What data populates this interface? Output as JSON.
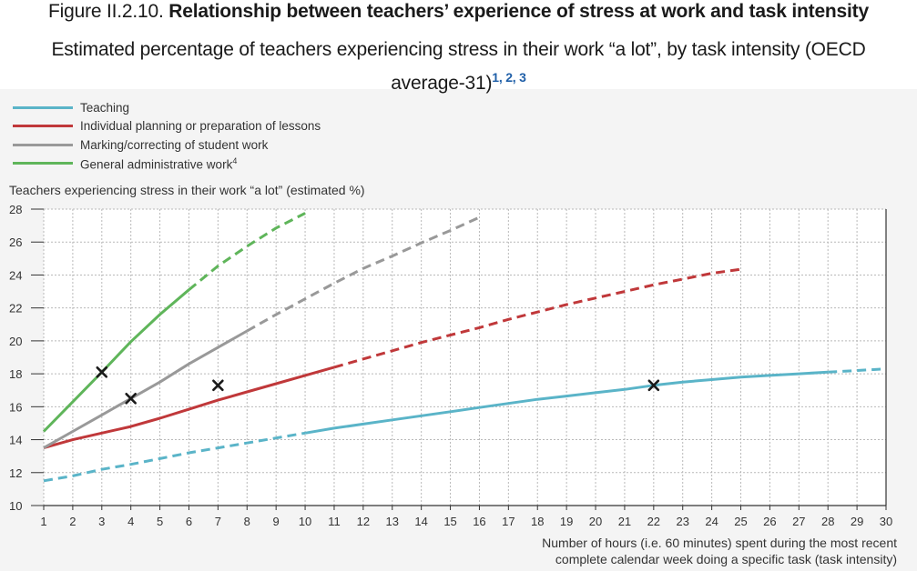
{
  "figure": {
    "number": "Figure II.2.10.",
    "title": "Relationship between teachers’ experience of stress at work and task intensity",
    "subtitle": "Estimated percentage of teachers experiencing stress in their work “a lot”, by task intensity (OECD average-31)",
    "footnote_refs": "1, 2, 3"
  },
  "chart_data": {
    "type": "line",
    "title": "Relationship between teachers’ experience of stress at work and task intensity",
    "subtitle": "Estimated percentage of teachers experiencing stress in their work “a lot”, by task intensity (OECD average-31)",
    "ylabel": "Teachers experiencing stress in their work “a lot” (estimated %)",
    "xlabel_line1": "Number of hours (i.e. 60 minutes) spent during the most recent",
    "xlabel_line2": "complete calendar week doing a specific task (task intensity)",
    "xlim": [
      1,
      30
    ],
    "ylim": [
      10,
      28
    ],
    "x_ticks": [
      1,
      2,
      3,
      4,
      5,
      6,
      7,
      8,
      9,
      10,
      11,
      12,
      13,
      14,
      15,
      16,
      17,
      18,
      19,
      20,
      21,
      22,
      23,
      24,
      25,
      26,
      27,
      28,
      29,
      30
    ],
    "y_ticks": [
      10,
      12,
      14,
      16,
      18,
      20,
      22,
      24,
      26,
      28
    ],
    "grid": true,
    "legend_position": "top-left",
    "series": [
      {
        "name": "Teaching",
        "color": "#5ab4c8",
        "x": [
          1,
          2,
          3,
          4,
          5,
          6,
          7,
          8,
          9,
          10,
          11,
          12,
          13,
          14,
          15,
          16,
          17,
          18,
          19,
          20,
          21,
          22,
          23,
          24,
          25,
          26,
          27,
          28,
          29,
          30
        ],
        "y": [
          11.5,
          11.8,
          12.2,
          12.5,
          12.85,
          13.2,
          13.5,
          13.8,
          14.1,
          14.4,
          14.7,
          14.95,
          15.2,
          15.45,
          15.7,
          15.95,
          16.2,
          16.45,
          16.65,
          16.85,
          17.05,
          17.3,
          17.5,
          17.65,
          17.8,
          17.9,
          18.0,
          18.1,
          18.2,
          18.3
        ],
        "solid_from": 10,
        "solid_to": 28,
        "marker_x": 22,
        "marker_y": 17.3
      },
      {
        "name": "Individual planning or preparation of lessons",
        "color": "#c0383a",
        "x": [
          1,
          2,
          3,
          4,
          5,
          6,
          7,
          8,
          9,
          10,
          11,
          12,
          13,
          14,
          15,
          16,
          17,
          18,
          19,
          20,
          21,
          22,
          23,
          24,
          25
        ],
        "y": [
          13.5,
          14.0,
          14.4,
          14.8,
          15.3,
          15.85,
          16.4,
          16.9,
          17.4,
          17.9,
          18.4,
          18.9,
          19.4,
          19.9,
          20.35,
          20.8,
          21.3,
          21.75,
          22.2,
          22.6,
          23.0,
          23.4,
          23.75,
          24.1,
          24.35
        ],
        "solid_from": 1,
        "solid_to": 11,
        "marker_x": 7,
        "marker_y": 17.3
      },
      {
        "name": "Marking/correcting of student work",
        "color": "#999999",
        "x": [
          1,
          2,
          3,
          4,
          5,
          6,
          7,
          8,
          9,
          10,
          11,
          12,
          13,
          14,
          15,
          16
        ],
        "y": [
          13.5,
          14.5,
          15.5,
          16.5,
          17.5,
          18.6,
          19.6,
          20.6,
          21.6,
          22.55,
          23.5,
          24.4,
          25.15,
          25.95,
          26.7,
          27.5
        ],
        "solid_from": 1,
        "solid_to": 8,
        "marker_x": 4,
        "marker_y": 16.5
      },
      {
        "name": "General administrative work",
        "name_sup": "4",
        "color": "#5fb55a",
        "x": [
          1,
          2,
          3,
          4,
          5,
          6,
          7,
          8,
          9,
          10
        ],
        "y": [
          14.5,
          16.3,
          18.1,
          19.95,
          21.6,
          23.1,
          24.55,
          25.75,
          26.85,
          27.75
        ],
        "solid_from": 1,
        "solid_to": 6,
        "marker_x": 3,
        "marker_y": 18.1
      }
    ]
  }
}
